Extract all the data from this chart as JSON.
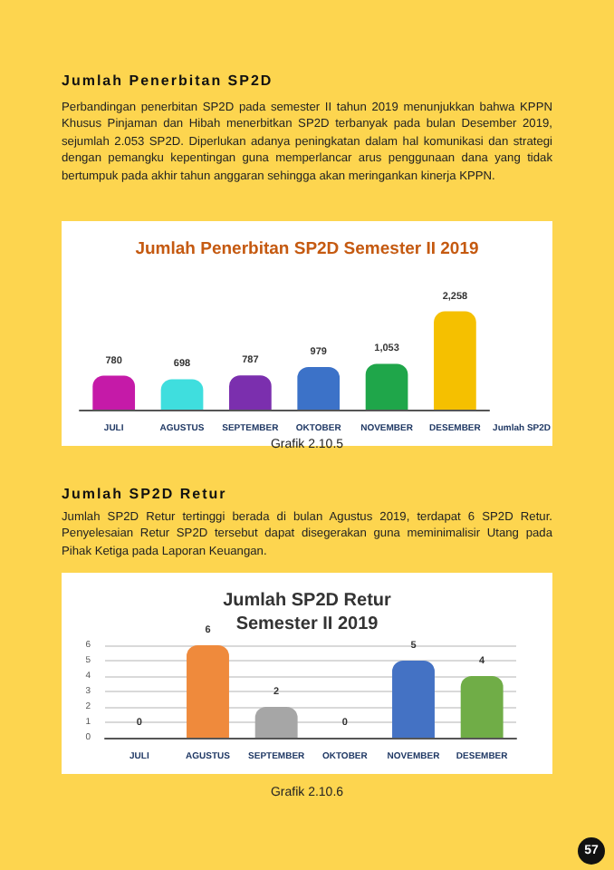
{
  "chart_data": [
    {
      "type": "bar",
      "title": "Jumlah Penerbitan SP2D Semester II 2019",
      "xlabel": "Jumlah SP2D",
      "categories": [
        "JULI",
        "AGUSTUS",
        "SEPTEMBER",
        "OKTOBER",
        "NOVEMBER",
        "DESEMBER"
      ],
      "values": [
        780,
        698,
        787,
        979,
        1053,
        2258
      ],
      "value_labels": [
        "780",
        "698",
        "787",
        "979",
        "1,053",
        "2,258"
      ],
      "colors": [
        "#c51aa8",
        "#3fdede",
        "#7b2fae",
        "#3c72c8",
        "#1fa64a",
        "#f5c000"
      ],
      "annotations": [
        "Jumlah Penerbitan SP2D",
        "Perbandingan penerbitan SP2D pada semester II tahun 2019 menunjukkan bahwa KPPN Khusus Pinjaman dan Hibah menerbitkan SP2D terbanyak pada bulan Desember 2019, sejumlah 2.053 SP2D. Diperlukan adanya peningkatan dalam hal komunikasi dan strategi dengan pemangku kepentingan guna memperlancar arus penggunaan dana yang tidak bertumpuk pada akhir tahun anggaran sehingga akan meringankan kinerja KPPN.",
        "Grafik 2.10.5"
      ]
    },
    {
      "type": "bar",
      "title": "Jumlah SP2D Retur",
      "subtitle": "Semester II 2019",
      "categories": [
        "JULI",
        "AGUSTUS",
        "SEPTEMBER",
        "OKTOBER",
        "NOVEMBER",
        "DESEMBER"
      ],
      "values": [
        0,
        6,
        2,
        0,
        5,
        4
      ],
      "colors": [
        "#7f6000",
        "#ef8a3c",
        "#a6a6a6",
        "#7f6000",
        "#4472c4",
        "#70ad47"
      ],
      "data_labels": true,
      "ylim": [
        0,
        6
      ],
      "yticks": [
        0,
        1,
        2,
        3,
        4,
        5,
        6
      ],
      "grid": "y",
      "annotations": [
        "Jumlah SP2D Retur",
        "Jumlah SP2D Retur tertinggi berada di bulan Agustus 2019, terdapat 6 SP2D Retur. Penyelesaian Retur SP2D tersebut dapat disegerakan guna meminimalisir Utang pada Pihak Ketiga pada Laporan Keuangan.",
        "Grafik 2.10.6",
        "57"
      ]
    }
  ]
}
